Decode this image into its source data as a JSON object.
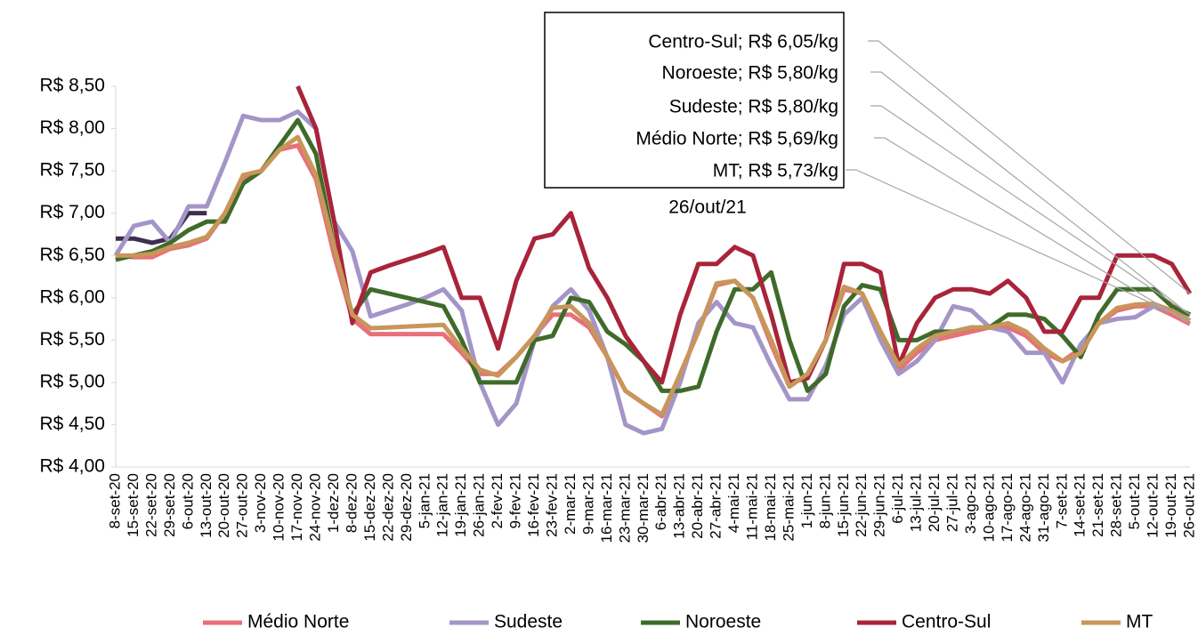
{
  "chart_data": {
    "type": "line",
    "categories": [
      "8-set-20",
      "15-set-20",
      "22-set-20",
      "29-set-20",
      "6-out-20",
      "13-out-20",
      "20-out-20",
      "27-out-20",
      "3-nov-20",
      "10-nov-20",
      "17-nov-20",
      "24-nov-20",
      "1-dez-20",
      "8-dez-20",
      "15-dez-20",
      "22-dez-20",
      "29-dez-20",
      "5-jan-21",
      "12-jan-21",
      "19-jan-21",
      "26-jan-21",
      "2-fev-21",
      "9-fev-21",
      "16-fev-21",
      "23-fev-21",
      "2-mar-21",
      "9-mar-21",
      "16-mar-21",
      "23-mar-21",
      "30-mar-21",
      "6-abr-21",
      "13-abr-21",
      "20-abr-21",
      "27-abr-21",
      "4-mai-21",
      "11-mai-21",
      "18-mai-21",
      "25-mai-21",
      "1-jun-21",
      "8-jun-21",
      "15-jun-21",
      "22-jun-21",
      "29-jun-21",
      "6-jul-21",
      "13-jul-21",
      "20-jul-21",
      "27-jul-21",
      "3-ago-21",
      "10-ago-21",
      "17-ago-21",
      "24-ago-21",
      "31-ago-21",
      "7-set-21",
      "14-set-21",
      "21-set-21",
      "28-set-21",
      "5-out-21",
      "12-out-21",
      "19-out-21",
      "26-out-21"
    ],
    "series": [
      {
        "color": "#3f2e50",
        "values": [
          6.7,
          6.7,
          6.65,
          6.7,
          7.0,
          7.0,
          null,
          null,
          null,
          null,
          null,
          null,
          null,
          null,
          null,
          null,
          null,
          null,
          null,
          null,
          null,
          null,
          null,
          null,
          null,
          null,
          null,
          null,
          null,
          null,
          null,
          null,
          null,
          null,
          null,
          null,
          null,
          null,
          null,
          null,
          null,
          null,
          null,
          null,
          null,
          null,
          null,
          null,
          null,
          null,
          null,
          null,
          null,
          null,
          null,
          null,
          null,
          null,
          null,
          null
        ]
      },
      {
        "name": "Médio Norte",
        "color": "#e8707a",
        "values": [
          6.5,
          6.48,
          6.48,
          6.58,
          6.62,
          6.7,
          7.0,
          7.4,
          7.5,
          7.75,
          7.8,
          7.4,
          6.5,
          5.75,
          5.57,
          5.57,
          5.57,
          5.57,
          5.57,
          5.35,
          5.1,
          5.1,
          5.3,
          5.55,
          5.8,
          5.8,
          5.65,
          5.3,
          4.9,
          4.75,
          4.6,
          5.1,
          5.6,
          6.15,
          6.2,
          6.0,
          5.45,
          4.95,
          5.1,
          5.5,
          6.1,
          6.05,
          5.6,
          5.15,
          5.35,
          5.5,
          5.55,
          5.6,
          5.65,
          5.65,
          5.55,
          5.35,
          5.25,
          5.4,
          5.7,
          5.85,
          5.9,
          5.9,
          5.8,
          5.69
        ]
      },
      {
        "name": "Sudeste",
        "color": "#a495c8",
        "values": [
          6.5,
          6.85,
          6.9,
          6.65,
          7.08,
          7.08,
          7.6,
          8.15,
          8.1,
          8.1,
          8.2,
          8.0,
          6.9,
          6.55,
          5.78,
          5.85,
          5.92,
          6.0,
          6.1,
          5.85,
          5.0,
          4.5,
          4.75,
          5.5,
          5.9,
          6.1,
          5.85,
          5.3,
          4.5,
          4.4,
          4.45,
          5.0,
          5.7,
          5.95,
          5.7,
          5.65,
          5.2,
          4.8,
          4.8,
          5.2,
          5.8,
          6.0,
          5.5,
          5.1,
          5.25,
          5.5,
          5.9,
          5.85,
          5.65,
          5.6,
          5.35,
          5.35,
          5.0,
          5.45,
          5.7,
          5.75,
          5.77,
          5.9,
          5.85,
          5.8
        ]
      },
      {
        "name": "Noroeste",
        "color": "#3f6b2a",
        "values": [
          6.45,
          6.5,
          6.55,
          6.65,
          6.8,
          6.9,
          6.9,
          7.35,
          7.5,
          7.8,
          8.1,
          7.7,
          6.6,
          5.8,
          6.1,
          6.05,
          6.0,
          5.95,
          5.9,
          5.5,
          5.0,
          5.0,
          5.0,
          5.5,
          5.55,
          6.0,
          5.95,
          5.6,
          5.45,
          5.25,
          4.9,
          4.9,
          4.95,
          5.6,
          6.1,
          6.1,
          6.3,
          5.5,
          4.9,
          5.1,
          5.9,
          6.15,
          6.1,
          5.5,
          5.5,
          5.6,
          5.6,
          5.65,
          5.65,
          5.8,
          5.8,
          5.75,
          5.55,
          5.3,
          5.8,
          6.1,
          6.1,
          6.1,
          5.9,
          5.8
        ]
      },
      {
        "name": "Centro-Sul",
        "color": "#a8243a",
        "values": [
          null,
          null,
          null,
          null,
          null,
          null,
          null,
          null,
          null,
          null,
          8.5,
          8.0,
          6.9,
          5.7,
          6.3,
          6.38,
          6.45,
          6.52,
          6.6,
          6.0,
          6.0,
          5.4,
          6.2,
          6.7,
          6.75,
          7.0,
          6.35,
          6.0,
          5.55,
          5.25,
          5.0,
          5.8,
          6.4,
          6.4,
          6.6,
          6.5,
          5.8,
          5.0,
          5.05,
          5.5,
          6.4,
          6.4,
          6.3,
          5.2,
          5.7,
          6.0,
          6.1,
          6.1,
          6.05,
          6.2,
          6.0,
          5.6,
          5.6,
          6.0,
          6.0,
          6.5,
          6.5,
          6.5,
          6.4,
          6.05
        ]
      },
      {
        "name": "MT",
        "color": "#c8965a",
        "values": [
          6.5,
          6.5,
          6.52,
          6.6,
          6.65,
          6.72,
          7.0,
          7.45,
          7.5,
          7.75,
          7.9,
          7.45,
          6.6,
          5.8,
          5.64,
          5.65,
          5.66,
          5.67,
          5.68,
          5.4,
          5.15,
          5.08,
          5.3,
          5.55,
          5.88,
          5.9,
          5.7,
          5.3,
          4.9,
          4.75,
          4.62,
          5.1,
          5.6,
          6.17,
          6.2,
          6.0,
          5.5,
          4.95,
          5.1,
          5.5,
          6.13,
          6.05,
          5.6,
          5.2,
          5.4,
          5.55,
          5.6,
          5.65,
          5.65,
          5.7,
          5.6,
          5.4,
          5.25,
          5.35,
          5.7,
          5.88,
          5.92,
          5.93,
          5.85,
          5.73
        ]
      }
    ],
    "ylim": [
      4,
      8.5
    ],
    "yticks": [
      {
        "value": 4,
        "label": "R$ 4,00"
      },
      {
        "value": 4.5,
        "label": "R$ 4,50"
      },
      {
        "value": 5,
        "label": "R$ 5,00"
      },
      {
        "value": 5.5,
        "label": "R$ 5,50"
      },
      {
        "value": 6,
        "label": "R$ 6,00"
      },
      {
        "value": 6.5,
        "label": "R$ 6,50"
      },
      {
        "value": 7,
        "label": "R$ 7,00"
      },
      {
        "value": 7.5,
        "label": "R$ 7,50"
      },
      {
        "value": 8,
        "label": "R$ 8,00"
      },
      {
        "value": 8.5,
        "label": "R$ 8,50"
      }
    ],
    "grid": false,
    "legend": "bottom",
    "annotations": {
      "labels": [
        "Centro-Sul; R$ 6,05/kg",
        "Noroeste; R$ 5,80/kg",
        "Sudeste; R$ 5,80/kg",
        "Médio Norte; R$ 5,69/kg",
        "MT; R$ 5,73/kg"
      ],
      "date": "26/out/21"
    }
  }
}
